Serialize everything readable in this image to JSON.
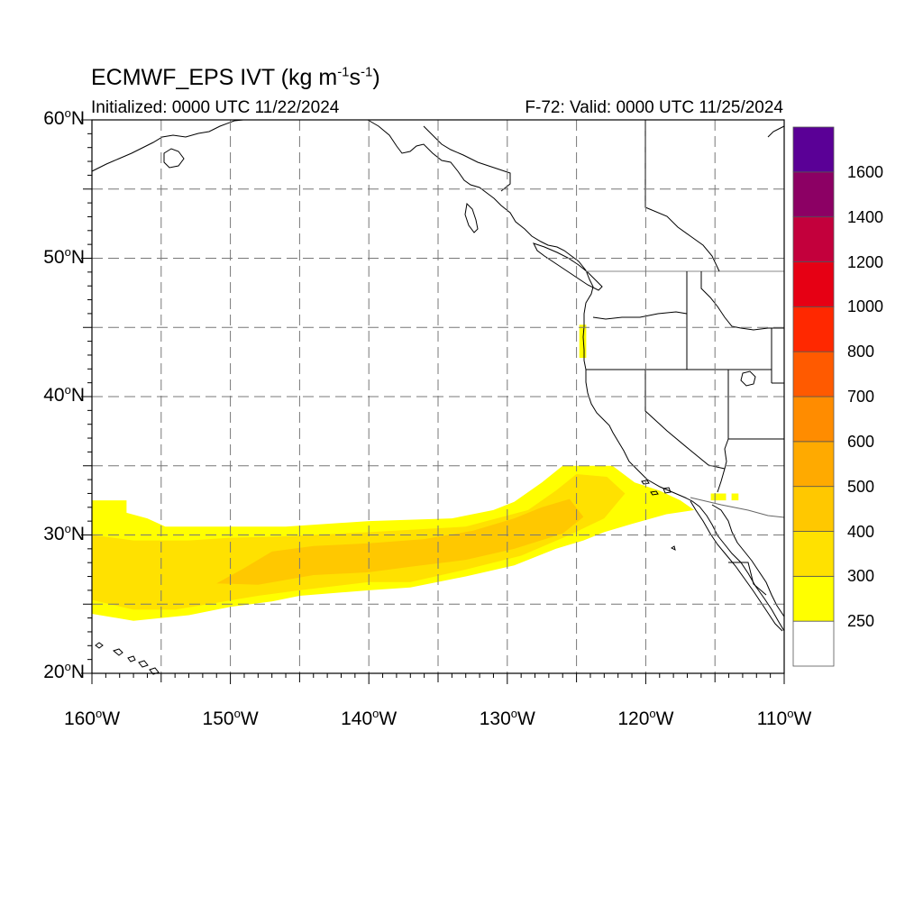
{
  "title": {
    "model": "ECMWF_EPS IVT (kg m",
    "exp1": "-1",
    "mid": "s",
    "exp2": "-1",
    "close": ")"
  },
  "subtitle_left": "Initialized: 0000 UTC 11/22/2024",
  "subtitle_right": "F-72: Valid: 0000 UTC 11/25/2024",
  "lat_labels": [
    {
      "num": "60",
      "dir": "N"
    },
    {
      "num": "50",
      "dir": "N"
    },
    {
      "num": "40",
      "dir": "N"
    },
    {
      "num": "30",
      "dir": "N"
    },
    {
      "num": "20",
      "dir": "N"
    }
  ],
  "lon_labels": [
    {
      "num": "160",
      "dir": "W"
    },
    {
      "num": "150",
      "dir": "W"
    },
    {
      "num": "140",
      "dir": "W"
    },
    {
      "num": "130",
      "dir": "W"
    },
    {
      "num": "120",
      "dir": "W"
    },
    {
      "num": "110",
      "dir": "W"
    }
  ],
  "map_extent": {
    "lon": [
      -160,
      -110
    ],
    "lat": [
      20,
      60
    ]
  },
  "colorbar": {
    "labels": [
      "250",
      "300",
      "400",
      "500",
      "600",
      "700",
      "800",
      "1000",
      "1200",
      "1400",
      "1600"
    ],
    "colors": [
      "#ffffff",
      "#ffff00",
      "#ffe100",
      "#ffc800",
      "#ffaa00",
      "#ff8c00",
      "#ff5a00",
      "#ff2800",
      "#e60014",
      "#c3003c",
      "#8c0064",
      "#5a0096"
    ]
  },
  "ivt_field": {
    "levels": [
      250,
      300,
      400,
      500
    ],
    "colors": [
      "#ffff00",
      "#ffe100",
      "#ffc800",
      "#ffaa00"
    ],
    "bands": [
      {
        "level": 250,
        "lonlat": [
          [
            -160,
            32.5
          ],
          [
            -157.5,
            32.5
          ],
          [
            -157.5,
            31.6
          ],
          [
            -156,
            31.2
          ],
          [
            -154.7,
            30.6
          ],
          [
            -152.5,
            30.6
          ],
          [
            -150,
            30.6
          ],
          [
            -146,
            30.6
          ],
          [
            -140,
            31
          ],
          [
            -134,
            31.2
          ],
          [
            -131,
            31.8
          ],
          [
            -129.5,
            32.4
          ],
          [
            -127.5,
            33.8
          ],
          [
            -126,
            35
          ],
          [
            -122.4,
            35
          ],
          [
            -120.8,
            33.8
          ],
          [
            -119,
            33.2
          ],
          [
            -117.5,
            32.5
          ],
          [
            -116.5,
            31.8
          ],
          [
            -118.5,
            31.5
          ],
          [
            -121,
            30.8
          ],
          [
            -123,
            30.2
          ],
          [
            -124.5,
            29.6
          ],
          [
            -126.5,
            29
          ],
          [
            -129.5,
            27.8
          ],
          [
            -133,
            27
          ],
          [
            -137,
            26.2
          ],
          [
            -140,
            26
          ],
          [
            -145,
            25.6
          ],
          [
            -147,
            25.2
          ],
          [
            -150,
            24.8
          ],
          [
            -153,
            24.2
          ],
          [
            -157,
            23.8
          ],
          [
            -160,
            24.3
          ]
        ]
      },
      {
        "level": 300,
        "lonlat": [
          [
            -160,
            30
          ],
          [
            -157,
            29.6
          ],
          [
            -153,
            29.6
          ],
          [
            -150,
            29.8
          ],
          [
            -146,
            29.9
          ],
          [
            -140,
            30.2
          ],
          [
            -133,
            30.6
          ],
          [
            -128.5,
            31.8
          ],
          [
            -126.5,
            33.2
          ],
          [
            -125,
            34.4
          ],
          [
            -122.8,
            34.2
          ],
          [
            -121.5,
            33
          ],
          [
            -123,
            31.2
          ],
          [
            -125.5,
            30
          ],
          [
            -129,
            28.5
          ],
          [
            -133,
            27.5
          ],
          [
            -137,
            26.6
          ],
          [
            -140,
            26.6
          ],
          [
            -145,
            26
          ],
          [
            -148,
            25.6
          ],
          [
            -151,
            25.1
          ],
          [
            -154,
            24.6
          ],
          [
            -157,
            24.6
          ],
          [
            -160,
            25.3
          ]
        ]
      },
      {
        "level": 400,
        "lonlat": [
          [
            -151,
            26.5
          ],
          [
            -149,
            27.6
          ],
          [
            -147,
            28.8
          ],
          [
            -144,
            29.2
          ],
          [
            -140,
            29.4
          ],
          [
            -136,
            29.7
          ],
          [
            -132.5,
            30.3
          ],
          [
            -129.5,
            31.2
          ],
          [
            -127.5,
            32
          ],
          [
            -125.5,
            32.6
          ],
          [
            -124.5,
            31.3
          ],
          [
            -126,
            30.1
          ],
          [
            -129.5,
            29
          ],
          [
            -133,
            28.2
          ],
          [
            -137,
            27.7
          ],
          [
            -140,
            27.3
          ],
          [
            -144,
            27.1
          ],
          [
            -148,
            26.4
          ]
        ]
      },
      {
        "level": 250,
        "lonlat": [
          [
            -124.8,
            45.2
          ],
          [
            -124.3,
            45.2
          ],
          [
            -124.3,
            42.8
          ],
          [
            -124.8,
            42.8
          ]
        ]
      },
      {
        "level": 250,
        "lonlat": [
          [
            -115.3,
            33
          ],
          [
            -114.2,
            33
          ],
          [
            -114.2,
            32.5
          ],
          [
            -115.3,
            32.5
          ]
        ]
      },
      {
        "level": 250,
        "lonlat": [
          [
            -113.8,
            33
          ],
          [
            -113.3,
            33
          ],
          [
            -113.3,
            32.5
          ],
          [
            -113.8,
            32.5
          ]
        ]
      }
    ]
  }
}
